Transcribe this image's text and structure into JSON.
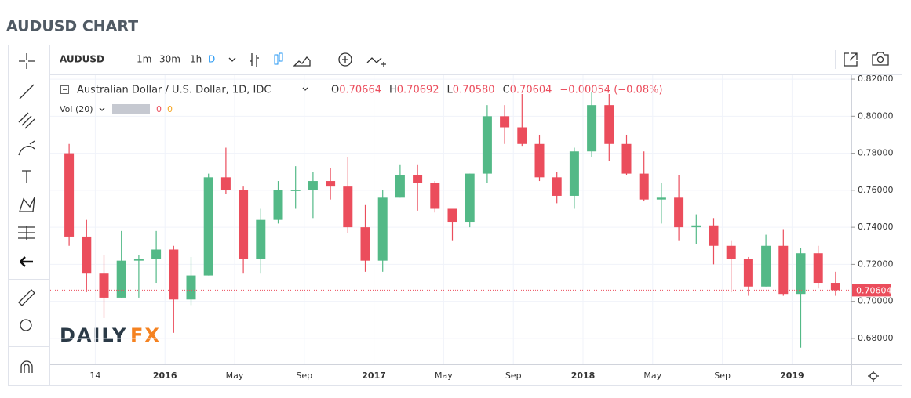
{
  "header": {
    "title": "AUDUSD CHART"
  },
  "toolbar": {
    "symbol": "AUDUSD",
    "intervals": [
      "1m",
      "30m",
      "1h",
      "D"
    ]
  },
  "chart_data": {
    "type": "candlestick",
    "title": "Australian Dollar / U.S. Dollar, 1D, IDC",
    "quote": [
      {
        "label": "O",
        "value": "0.70664"
      },
      {
        "label": "H",
        "value": "0.70692"
      },
      {
        "label": "L",
        "value": "0.70580"
      },
      {
        "label": "C",
        "value": "0.70604"
      }
    ],
    "change": "−0.00054 (−0.08%)",
    "volume_label": "Vol (20)",
    "volume_values": [
      0,
      0
    ],
    "watermark": [
      "DAILY",
      "FX"
    ],
    "categories": [
      null,
      null,
      "14",
      null,
      null,
      null,
      "2016",
      null,
      null,
      null,
      "May",
      null,
      null,
      null,
      "Sep",
      null,
      null,
      null,
      "2017",
      null,
      null,
      null,
      "May",
      null,
      null,
      null,
      "Sep",
      null,
      null,
      null,
      "2018",
      null,
      null,
      null,
      "May",
      null,
      null,
      null,
      "Sep",
      null,
      null,
      null,
      "2019",
      null,
      null
    ],
    "open": [
      0.78,
      0.735,
      0.715,
      0.702,
      0.722,
      0.723,
      0.728,
      0.701,
      0.714,
      0.767,
      0.76,
      0.723,
      0.744,
      0.76,
      0.76,
      0.765,
      0.762,
      0.74,
      0.722,
      0.756,
      0.768,
      0.764,
      0.75,
      0.743,
      0.769,
      0.8,
      0.794,
      0.785,
      0.767,
      0.757,
      0.781,
      0.806,
      0.785,
      0.769,
      0.755,
      0.756,
      0.74,
      0.741,
      0.73,
      0.723,
      0.708,
      0.73,
      0.704,
      0.726,
      0.71
    ],
    "high": [
      0.785,
      0.744,
      0.725,
      0.738,
      0.725,
      0.738,
      0.73,
      0.724,
      0.769,
      0.783,
      0.762,
      0.75,
      0.765,
      0.773,
      0.77,
      0.772,
      0.778,
      0.752,
      0.76,
      0.774,
      0.774,
      0.765,
      0.75,
      0.769,
      0.806,
      0.806,
      0.812,
      0.79,
      0.77,
      0.783,
      0.813,
      0.812,
      0.79,
      0.781,
      0.764,
      0.768,
      0.747,
      0.745,
      0.733,
      0.724,
      0.736,
      0.739,
      0.729,
      0.73,
      0.716
    ],
    "low": [
      0.73,
      0.705,
      0.691,
      0.702,
      0.702,
      0.71,
      0.683,
      0.698,
      0.714,
      0.758,
      0.715,
      0.715,
      0.742,
      0.75,
      0.745,
      0.755,
      0.737,
      0.716,
      0.716,
      0.756,
      0.749,
      0.748,
      0.733,
      0.74,
      0.764,
      0.785,
      0.784,
      0.765,
      0.753,
      0.75,
      0.778,
      0.776,
      0.768,
      0.754,
      0.742,
      0.733,
      0.731,
      0.72,
      0.705,
      0.703,
      0.708,
      0.703,
      0.675,
      0.707,
      0.703
    ],
    "close": [
      0.735,
      0.715,
      0.702,
      0.722,
      0.723,
      0.728,
      0.701,
      0.714,
      0.767,
      0.76,
      0.723,
      0.744,
      0.76,
      0.76,
      0.765,
      0.762,
      0.74,
      0.722,
      0.756,
      0.768,
      0.764,
      0.75,
      0.743,
      0.769,
      0.8,
      0.794,
      0.785,
      0.767,
      0.757,
      0.781,
      0.806,
      0.785,
      0.769,
      0.755,
      0.756,
      0.74,
      0.741,
      0.73,
      0.723,
      0.708,
      0.73,
      0.704,
      0.726,
      0.71,
      0.70604
    ],
    "up_color": "#53b987",
    "down_color": "#eb4d5c",
    "last_price": 0.70604,
    "ylim": [
      0.666,
      0.8213
    ],
    "yticks": [
      {
        "value": 0.68,
        "label": "0.68000"
      },
      {
        "value": 0.7,
        "label": "0.70000"
      },
      {
        "value": 0.72,
        "label": "0.72000"
      },
      {
        "value": 0.74,
        "label": "0.74000"
      },
      {
        "value": 0.76,
        "label": "0.76000"
      },
      {
        "value": 0.78,
        "label": "0.78000"
      },
      {
        "value": 0.8,
        "label": "0.80000"
      },
      {
        "value": 0.82,
        "label": "0.82000"
      }
    ],
    "grid": true
  }
}
